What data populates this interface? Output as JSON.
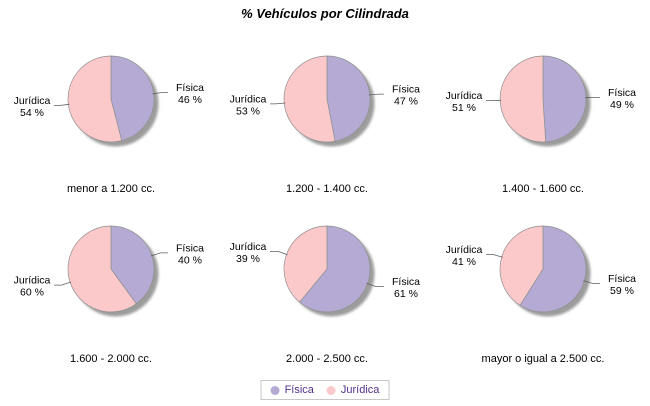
{
  "title": "% Vehículos por Cilindrada",
  "colors": {
    "fisica": "#b5aad3",
    "juridica": "#fbc9c9",
    "shadow": "#9c9c9c",
    "outline": "#8f8f8f",
    "leader_line": "#606060",
    "legend_text": "#52308c",
    "legend_border": "#c8c8c8",
    "background": "#ffffff"
  },
  "legend": {
    "position": "bottom",
    "items": [
      {
        "label": "Física"
      },
      {
        "label": "Jurídica"
      }
    ]
  },
  "chart_data": [
    {
      "type": "pie",
      "title": "menor a 1.200 cc.",
      "labels": [
        "Física",
        "Jurídica"
      ],
      "values": [
        46,
        54
      ],
      "label_format": "{name} {value} %"
    },
    {
      "type": "pie",
      "title": "1.200 - 1.400 cc.",
      "labels": [
        "Física",
        "Jurídica"
      ],
      "values": [
        47,
        53
      ],
      "label_format": "{name} {value} %"
    },
    {
      "type": "pie",
      "title": "1.400 - 1.600 cc.",
      "labels": [
        "Física",
        "Jurídica"
      ],
      "values": [
        49,
        51
      ],
      "label_format": "{name} {value} %"
    },
    {
      "type": "pie",
      "title": "1.600 - 2.000 cc.",
      "labels": [
        "Física",
        "Jurídica"
      ],
      "values": [
        40,
        60
      ],
      "label_format": "{name} {value} %"
    },
    {
      "type": "pie",
      "title": "2.000 - 2.500 cc.",
      "labels": [
        "Física",
        "Jurídica"
      ],
      "values": [
        61,
        39
      ],
      "label_format": "{name} {value} %"
    },
    {
      "type": "pie",
      "title": "mayor o igual a 2.500 cc.",
      "labels": [
        "Física",
        "Jurídica"
      ],
      "values": [
        59,
        41
      ],
      "label_format": "{name} {value} %"
    }
  ]
}
